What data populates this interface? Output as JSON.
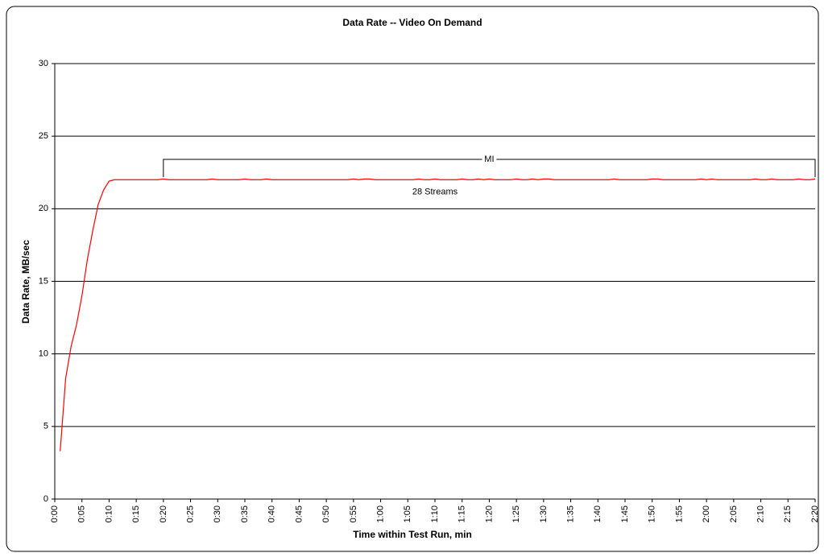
{
  "chart_data": {
    "type": "line",
    "title": "Data Rate -- Video On Demand",
    "xlabel": "Time within Test Run, min",
    "ylabel": "Data Rate, MB/sec",
    "xlim": [
      0,
      140
    ],
    "xticks": [
      {
        "value": 0,
        "label": "0:00"
      },
      {
        "value": 5,
        "label": "0:05"
      },
      {
        "value": 10,
        "label": "0:10"
      },
      {
        "value": 15,
        "label": "0:15"
      },
      {
        "value": 20,
        "label": "0:20"
      },
      {
        "value": 25,
        "label": "0:25"
      },
      {
        "value": 30,
        "label": "0:30"
      },
      {
        "value": 35,
        "label": "0:35"
      },
      {
        "value": 40,
        "label": "0:40"
      },
      {
        "value": 45,
        "label": "0:45"
      },
      {
        "value": 50,
        "label": "0:50"
      },
      {
        "value": 55,
        "label": "0:55"
      },
      {
        "value": 60,
        "label": "1:00"
      },
      {
        "value": 65,
        "label": "1:05"
      },
      {
        "value": 70,
        "label": "1:10"
      },
      {
        "value": 75,
        "label": "1:15"
      },
      {
        "value": 80,
        "label": "1:20"
      },
      {
        "value": 85,
        "label": "1:25"
      },
      {
        "value": 90,
        "label": "1:30"
      },
      {
        "value": 95,
        "label": "1:35"
      },
      {
        "value": 100,
        "label": "1:40"
      },
      {
        "value": 105,
        "label": "1:45"
      },
      {
        "value": 110,
        "label": "1:50"
      },
      {
        "value": 115,
        "label": "1:55"
      },
      {
        "value": 120,
        "label": "2:00"
      },
      {
        "value": 125,
        "label": "2:05"
      },
      {
        "value": 130,
        "label": "2:10"
      },
      {
        "value": 135,
        "label": "2:15"
      },
      {
        "value": 140,
        "label": "2:20"
      }
    ],
    "ylim": [
      0,
      30
    ],
    "yticks": [
      0,
      5,
      10,
      15,
      20,
      25,
      30
    ],
    "grid": true,
    "x": [
      1,
      2,
      3,
      4,
      5,
      6,
      7,
      8,
      9,
      10,
      11,
      12,
      13,
      14,
      15,
      16,
      17,
      18,
      19,
      20,
      21,
      22,
      23,
      24,
      25,
      26,
      27,
      28,
      29,
      30,
      31,
      32,
      33,
      34,
      35,
      36,
      37,
      38,
      39,
      40,
      41,
      42,
      43,
      44,
      45,
      46,
      47,
      48,
      49,
      50,
      51,
      52,
      53,
      54,
      55,
      56,
      57,
      58,
      59,
      60,
      61,
      62,
      63,
      64,
      65,
      66,
      67,
      68,
      69,
      70,
      71,
      72,
      73,
      74,
      75,
      76,
      77,
      78,
      79,
      80,
      81,
      82,
      83,
      84,
      85,
      86,
      87,
      88,
      89,
      90,
      91,
      92,
      93,
      94,
      95,
      96,
      97,
      98,
      99,
      100,
      101,
      102,
      103,
      104,
      105,
      106,
      107,
      108,
      109,
      110,
      111,
      112,
      113,
      114,
      115,
      116,
      117,
      118,
      119,
      120,
      121,
      122,
      123,
      124,
      125,
      126,
      127,
      128,
      129,
      130,
      131,
      132,
      133,
      134,
      135,
      136,
      137,
      138,
      139,
      140
    ],
    "series": [
      {
        "name": "28 Streams",
        "color": "#ff0000",
        "values": [
          3.3,
          8.3,
          10.5,
          12,
          14,
          16.5,
          18.5,
          20.3,
          21.3,
          21.9,
          22,
          22,
          22,
          22,
          22,
          22,
          22,
          22,
          22,
          22.05,
          22,
          22,
          22,
          22,
          22,
          22,
          22,
          22,
          22.05,
          22,
          22,
          22,
          22,
          22,
          22.05,
          22,
          22,
          22,
          22.05,
          22,
          22,
          22,
          22,
          22,
          22,
          22,
          22,
          22,
          22,
          22,
          22,
          22,
          22,
          22,
          22.05,
          22,
          22.05,
          22.05,
          22,
          22,
          22,
          22,
          22,
          22,
          22,
          22,
          22.05,
          22,
          22,
          22.05,
          22,
          22,
          22,
          22,
          22.05,
          22,
          22,
          22.05,
          22,
          22.05,
          22,
          22,
          22,
          22,
          22.05,
          22,
          22,
          22.05,
          22,
          22.05,
          22.05,
          22,
          22,
          22,
          22,
          22,
          22,
          22,
          22,
          22,
          22,
          22,
          22.05,
          22,
          22,
          22,
          22,
          22,
          22,
          22.05,
          22.05,
          22,
          22,
          22,
          22,
          22,
          22,
          22,
          22.05,
          22,
          22.05,
          22,
          22,
          22,
          22,
          22,
          22,
          22,
          22.05,
          22,
          22,
          22.05,
          22,
          22,
          22,
          22,
          22.05,
          22,
          22,
          22.05
        ]
      }
    ],
    "annotations": [
      {
        "text": "MI",
        "x": [
          20,
          140
        ],
        "y": 23.4
      },
      {
        "text": "28 Streams",
        "x": 70,
        "y": 21.2
      }
    ]
  }
}
